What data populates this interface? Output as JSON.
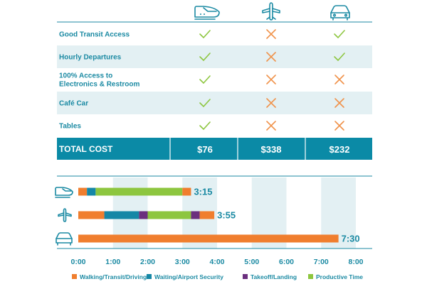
{
  "colors": {
    "teal": "#0b8aa6",
    "band": "#e3f0f3",
    "check": "#8dc63f",
    "cross": "#f0924a",
    "orange": "#f07e2e",
    "blue": "#1587a6",
    "purple": "#6b2f7e",
    "green": "#8dc63f"
  },
  "icons": [
    "train-icon",
    "plane-icon",
    "car-icon"
  ],
  "table": {
    "rows": [
      {
        "label_lines": [
          "Good Transit Access"
        ],
        "marks": [
          "check",
          "cross",
          "check"
        ]
      },
      {
        "label_lines": [
          "Hourly Departures"
        ],
        "marks": [
          "check",
          "cross",
          "check"
        ]
      },
      {
        "label_lines": [
          "100% Access to",
          "Electronics & Restroom"
        ],
        "marks": [
          "check",
          "cross",
          "cross"
        ]
      },
      {
        "label_lines": [
          "Café Car"
        ],
        "marks": [
          "check",
          "cross",
          "cross"
        ]
      },
      {
        "label_lines": [
          "Tables"
        ],
        "marks": [
          "check",
          "cross",
          "cross"
        ]
      }
    ],
    "total": {
      "label": "TOTAL COST",
      "values": [
        "$76",
        "$338",
        "$232"
      ]
    }
  },
  "chart_data": {
    "type": "bar",
    "orientation": "horizontal-stacked-timeline",
    "x_unit": "hours",
    "xlim": [
      0,
      8
    ],
    "x_ticks": [
      "0:00",
      "1:00",
      "2:00",
      "3:00",
      "4:00",
      "5:00",
      "6:00",
      "7:00",
      "8:00"
    ],
    "rows": [
      {
        "icon": "train-icon",
        "duration_label": "3:15",
        "segments": [
          {
            "category": "Walking/Transit/Driving",
            "start": 0.0,
            "end": 0.25
          },
          {
            "category": "Waiting/Airport Security",
            "start": 0.25,
            "end": 0.5
          },
          {
            "category": "Productive Time",
            "start": 0.5,
            "end": 3.0
          },
          {
            "category": "Walking/Transit/Driving",
            "start": 3.0,
            "end": 3.25
          }
        ]
      },
      {
        "icon": "plane-icon",
        "duration_label": "3:55",
        "segments": [
          {
            "category": "Walking/Transit/Driving",
            "start": 0.0,
            "end": 0.75
          },
          {
            "category": "Waiting/Airport Security",
            "start": 0.75,
            "end": 1.75
          },
          {
            "category": "Takeoff/Landing",
            "start": 1.75,
            "end": 2.0
          },
          {
            "category": "Productive Time",
            "start": 2.0,
            "end": 3.25
          },
          {
            "category": "Takeoff/Landing",
            "start": 3.25,
            "end": 3.5
          },
          {
            "category": "Walking/Transit/Driving",
            "start": 3.5,
            "end": 3.92
          }
        ]
      },
      {
        "icon": "car-icon",
        "duration_label": "7:30",
        "segments": [
          {
            "category": "Walking/Transit/Driving",
            "start": 0.0,
            "end": 7.5
          }
        ]
      }
    ],
    "legend": [
      {
        "name": "Walking/Transit/Driving",
        "color": "#f07e2e"
      },
      {
        "name": "Waiting/Airport Security",
        "color": "#1587a6"
      },
      {
        "name": "Takeoff/Landing",
        "color": "#6b2f7e"
      },
      {
        "name": "Productive Time",
        "color": "#8dc63f"
      }
    ],
    "legend_position": "bottom"
  }
}
